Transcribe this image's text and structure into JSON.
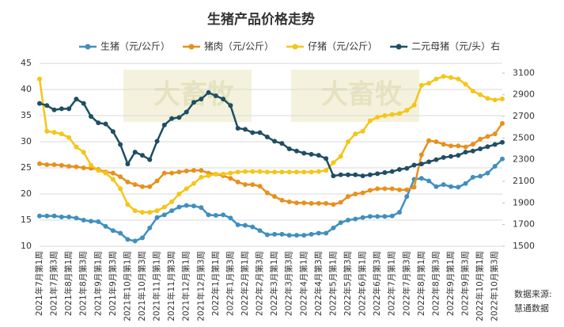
{
  "chart_data": {
    "type": "line",
    "title": "生猪产品价格走势",
    "watermark": "大畜牧",
    "source": [
      "数据来源:",
      "慧通数据"
    ],
    "categories": [
      "2021年7月第1周",
      null,
      "2021年7月第3周",
      null,
      "2021年8月第1周",
      null,
      "2021年8月第3周",
      null,
      "2021年9月第1周",
      null,
      "2021年9月第3周",
      null,
      "2021年10月第1周",
      null,
      "2021年10月第3周",
      null,
      "2021年11月第1周",
      null,
      "2021年11月第3周",
      null,
      "2021年12月第1周",
      null,
      "2021年12月第3周",
      null,
      "2022年1月第1周",
      null,
      "2022年1月第3周",
      null,
      "2022年2月第1周",
      null,
      "2022年2月第3周",
      null,
      "2022年3月第1周",
      null,
      "2022年3月第3周",
      null,
      "2022年4月第1周",
      null,
      "2022年4月第3周",
      null,
      "2022年5月第1周",
      null,
      "2022年5月第3周",
      null,
      "2022年6月第1周",
      null,
      "2022年6月第3周",
      null,
      "2022年7月第1周",
      null,
      "2022年7月第3周",
      null,
      "2022年8月第1周",
      null,
      "2022年8月第3周",
      null,
      "2022年9月第1周",
      null,
      "2022年9月第3周",
      null,
      "2022年10月第1周",
      null,
      "2022年10月第3周",
      null
    ],
    "series": [
      {
        "name": "生猪（元/公斤）",
        "color": "#3f8fc0",
        "values": [
          15.8,
          15.8,
          15.8,
          15.6,
          15.6,
          15.4,
          15.0,
          14.8,
          14.7,
          13.8,
          13.0,
          12.5,
          11.3,
          11.0,
          11.6,
          13.5,
          15.5,
          16.0,
          16.8,
          17.5,
          17.8,
          17.7,
          17.4,
          16.0,
          15.9,
          16.0,
          15.4,
          14.1,
          14.0,
          13.7,
          13.0,
          12.2,
          12.3,
          12.3,
          12.1,
          12.1,
          12.1,
          12.3,
          12.5,
          12.5,
          13.5,
          14.5,
          15.0,
          15.2,
          15.5,
          15.7,
          15.7,
          15.7,
          15.8,
          16.5,
          19.5,
          22.8,
          23.0,
          22.5,
          21.4,
          21.8,
          21.4,
          21.3,
          22.0,
          23.2,
          23.4,
          24.0,
          25.3,
          26.7
        ]
      },
      {
        "name": "猪肉（元/公斤）",
        "color": "#e8901c",
        "values": [
          25.8,
          25.6,
          25.6,
          25.5,
          25.3,
          25.2,
          25.0,
          24.9,
          24.7,
          24.2,
          24.0,
          23.3,
          22.3,
          21.8,
          21.4,
          21.4,
          22.5,
          24.0,
          24.0,
          24.2,
          24.4,
          24.5,
          24.5,
          24.0,
          23.8,
          23.5,
          23.0,
          22.3,
          21.8,
          21.8,
          21.5,
          20.2,
          19.5,
          18.8,
          18.5,
          18.3,
          18.3,
          18.2,
          18.2,
          18.2,
          18.0,
          18.4,
          19.5,
          20.0,
          20.2,
          20.7,
          21.0,
          21.0,
          21.0,
          20.8,
          20.8,
          21.3,
          27.5,
          30.2,
          30.0,
          29.5,
          29.2,
          29.2,
          29.0,
          29.5,
          30.5,
          31.0,
          31.5,
          33.5
        ]
      },
      {
        "name": "仔猪（元/公斤）",
        "color": "#f5c518",
        "values": [
          42,
          32,
          31.8,
          31.5,
          30.8,
          29,
          28,
          25.5,
          24.5,
          24,
          22.8,
          21,
          18,
          16.8,
          16.5,
          16.5,
          16.8,
          17.5,
          18.5,
          20,
          21,
          22,
          23.2,
          23.5,
          23.8,
          23.8,
          24,
          24.2,
          24.3,
          24.3,
          24.3,
          24.2,
          24.2,
          24.2,
          24.2,
          24.2,
          24.2,
          24.2,
          24.3,
          24.5,
          26,
          27.2,
          30,
          31.5,
          32,
          34,
          34.7,
          35,
          35.2,
          35.4,
          36,
          37,
          40.8,
          41.2,
          42,
          42.5,
          42.3,
          42,
          41,
          39.7,
          39,
          38.3,
          38,
          38.2
        ]
      },
      {
        "name": "二元母猪（元/头）右",
        "color": "#1f4e63",
        "axis": "y2",
        "values": [
          2820,
          2800,
          2760,
          2770,
          2770,
          2860,
          2820,
          2700,
          2640,
          2630,
          2560,
          2440,
          2260,
          2370,
          2340,
          2300,
          2470,
          2620,
          2680,
          2690,
          2740,
          2830,
          2860,
          2920,
          2890,
          2860,
          2800,
          2590,
          2580,
          2550,
          2550,
          2510,
          2470,
          2450,
          2400,
          2380,
          2360,
          2350,
          2340,
          2310,
          2150,
          2160,
          2160,
          2160,
          2150,
          2160,
          2170,
          2180,
          2190,
          2210,
          2220,
          2250,
          2260,
          2280,
          2300,
          2320,
          2330,
          2340,
          2370,
          2380,
          2400,
          2420,
          2440,
          2460
        ]
      }
    ],
    "ylim": [
      10,
      45
    ],
    "yticks": [
      10,
      15,
      20,
      25,
      30,
      35,
      40,
      45
    ],
    "y2lim": [
      1500,
      3190
    ],
    "y2ticks": [
      1500,
      1700,
      1900,
      2100,
      2300,
      2500,
      2700,
      2900,
      3100
    ],
    "grid": true
  }
}
